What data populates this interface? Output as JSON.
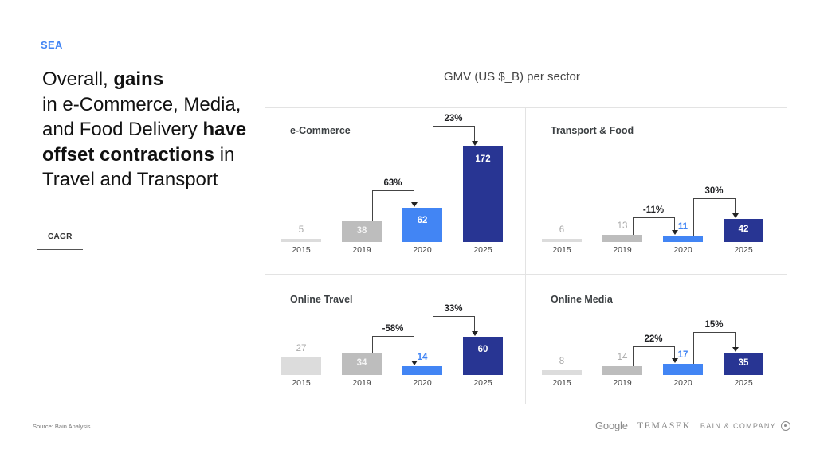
{
  "slide": {
    "region_tag": "SEA",
    "headline_parts": [
      {
        "text": "Overall, ",
        "bold": false
      },
      {
        "text": "gains",
        "bold": true
      },
      {
        "text": " in e-Commerce, Media, and Food Delivery ",
        "bold": false
      },
      {
        "text": "have offset contractions",
        "bold": true
      },
      {
        "text": " in Travel and Transport",
        "bold": false
      }
    ],
    "cagr_label": "CAGR",
    "chart_title": "GMV (US $_B) per sector",
    "source": "Source: Bain Analysis",
    "logos": {
      "google": "Google",
      "temasek": "TEMASEK",
      "bain": "BAIN & COMPANY"
    }
  },
  "colors": {
    "y2015": "#dcdcdc",
    "y2019": "#bdbdbd",
    "y2020": "#4285f4",
    "y2025": "#283593",
    "accent": "#4285f4"
  },
  "chart_data": [
    {
      "type": "bar",
      "title": "e-Commerce",
      "categories": [
        "2015",
        "2019",
        "2020",
        "2025"
      ],
      "values": [
        5,
        38,
        62,
        172
      ],
      "unit": "US $B GMV",
      "cagr": [
        {
          "from": "2019",
          "to": "2020",
          "label": "63%"
        },
        {
          "from": "2020",
          "to": "2025",
          "label": "23%"
        }
      ]
    },
    {
      "type": "bar",
      "title": "Transport & Food",
      "categories": [
        "2015",
        "2019",
        "2020",
        "2025"
      ],
      "values": [
        6,
        13,
        11,
        42
      ],
      "unit": "US $B GMV",
      "cagr": [
        {
          "from": "2019",
          "to": "2020",
          "label": "-11%"
        },
        {
          "from": "2020",
          "to": "2025",
          "label": "30%"
        }
      ]
    },
    {
      "type": "bar",
      "title": "Online Travel",
      "categories": [
        "2015",
        "2019",
        "2020",
        "2025"
      ],
      "values": [
        27,
        34,
        14,
        60
      ],
      "unit": "US $B GMV",
      "cagr": [
        {
          "from": "2019",
          "to": "2020",
          "label": "-58%"
        },
        {
          "from": "2020",
          "to": "2025",
          "label": "33%"
        }
      ]
    },
    {
      "type": "bar",
      "title": "Online Media",
      "categories": [
        "2015",
        "2019",
        "2020",
        "2025"
      ],
      "values": [
        8,
        14,
        17,
        35
      ],
      "unit": "US $B GMV",
      "cagr": [
        {
          "from": "2019",
          "to": "2020",
          "label": "22%"
        },
        {
          "from": "2020",
          "to": "2025",
          "label": "15%"
        }
      ]
    }
  ]
}
